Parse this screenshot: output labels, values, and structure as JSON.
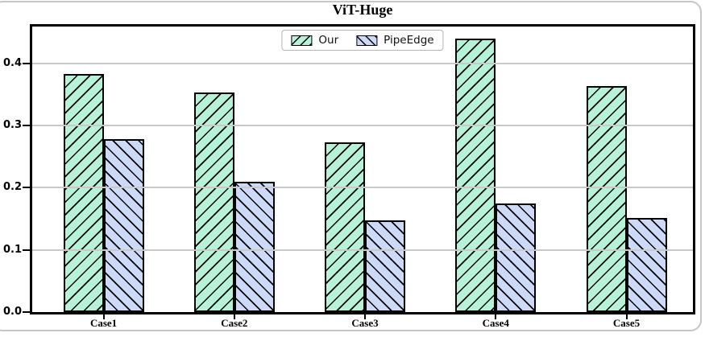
{
  "figure": {
    "title": "ViT-Huge"
  },
  "chart_data": {
    "type": "bar",
    "title": "ViT-Huge",
    "categories": [
      "Case1",
      "Case2",
      "Case3",
      "Case4",
      "Case5"
    ],
    "series": [
      {
        "name": "Our",
        "color": "#b5f2d8",
        "hatch": "/",
        "values": [
          0.383,
          0.353,
          0.273,
          0.44,
          0.363
        ]
      },
      {
        "name": "PipeEdge",
        "color": "#ccdaf8",
        "hatch": "\\",
        "values": [
          0.278,
          0.21,
          0.148,
          0.175,
          0.151
        ]
      }
    ],
    "xlabel": "",
    "ylabel": "",
    "ylim": [
      0,
      0.459
    ],
    "yticks": [
      0.0,
      0.1,
      0.2,
      0.3,
      0.4
    ],
    "ytick_labels": [
      "0.0",
      "0.1",
      "0.2",
      "0.3",
      "0.4"
    ],
    "grid": {
      "on": true,
      "axis": "y",
      "color": "#c9c9c9",
      "over_bars": true
    },
    "legend": {
      "position": "upper center",
      "entries": [
        "Our",
        "PipeEdge"
      ]
    },
    "colors": {
      "bar_edge": "#000000",
      "spine": "#000000",
      "frame_border": "#c6c6c6",
      "grid": "#c9c9c9"
    }
  }
}
